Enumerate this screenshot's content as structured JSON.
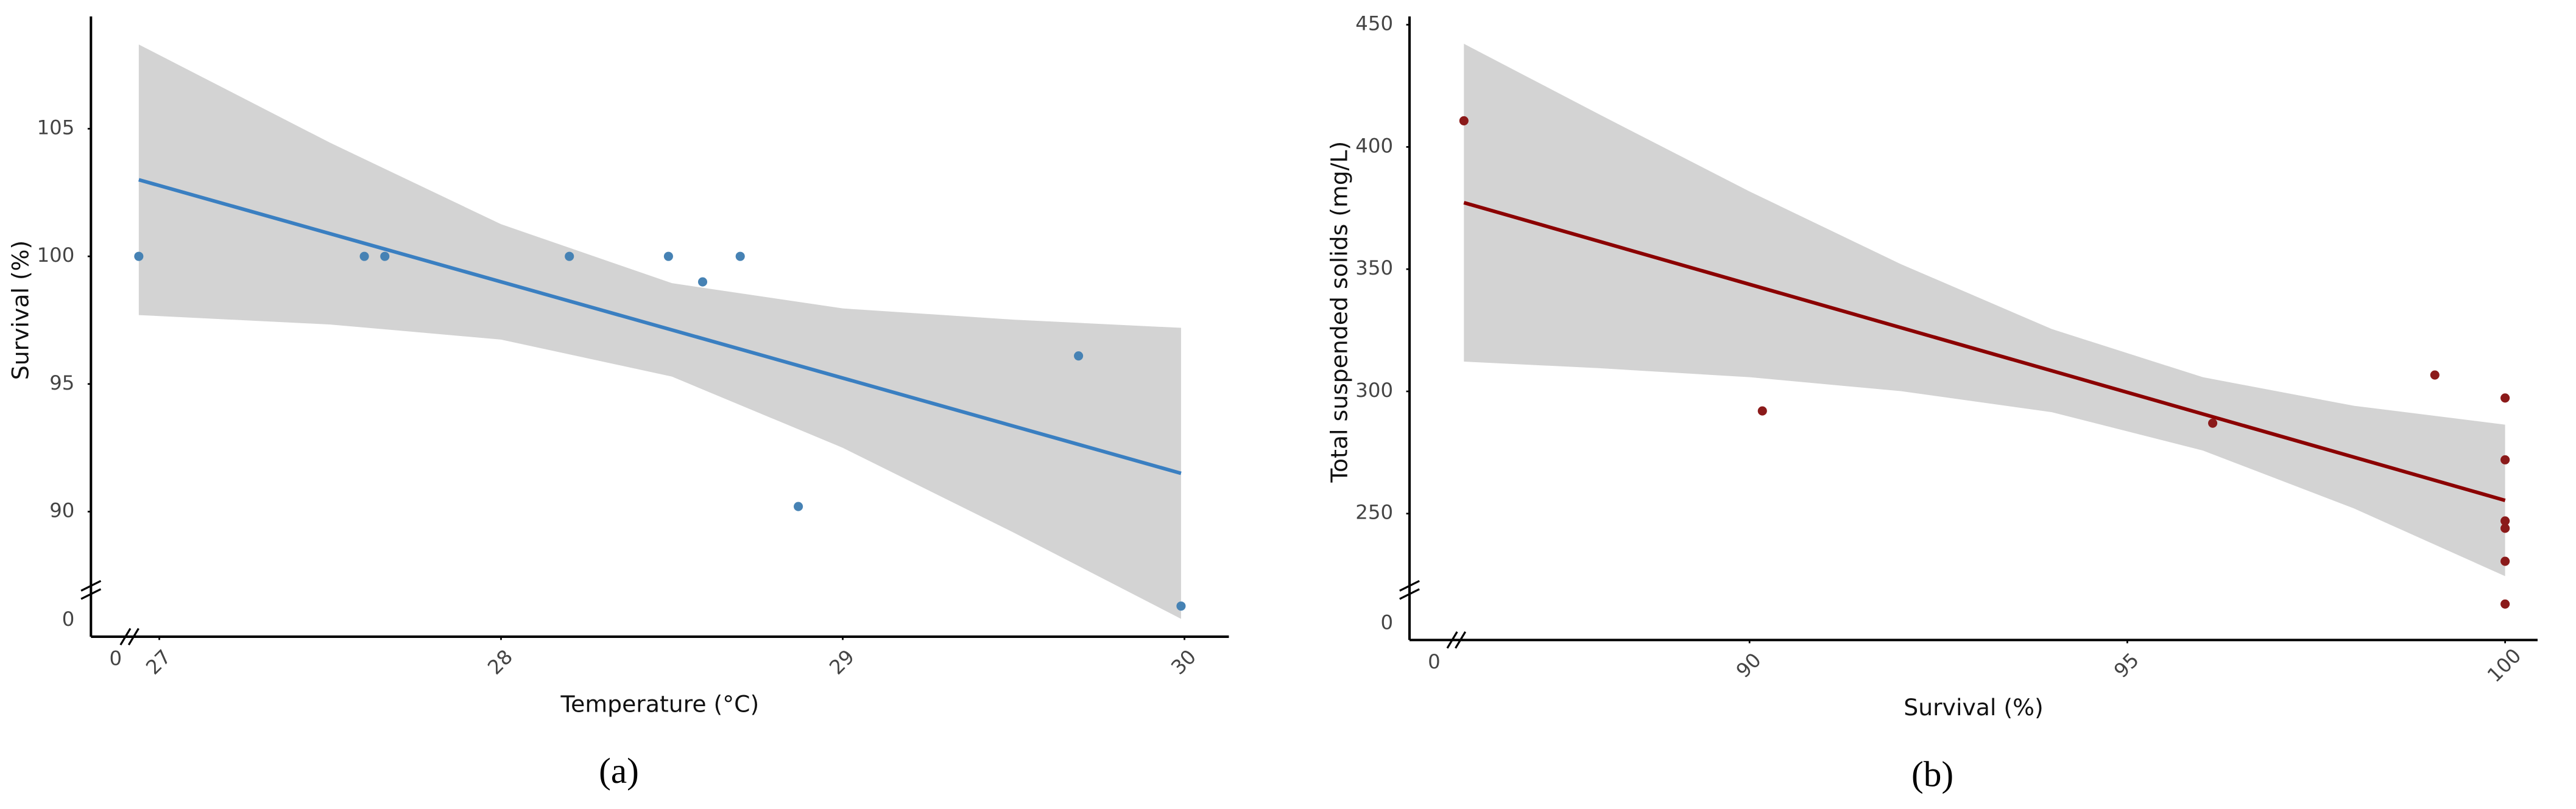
{
  "chart_data": [
    {
      "type": "scatter",
      "caption": "(a)",
      "x_label": "Temperature (°C)",
      "y_label": "Survival (%)",
      "color": "#4682b4",
      "line_color": "#3a7fc1",
      "band_color": "#d3d3d3",
      "x": [
        26.94,
        27.6,
        27.66,
        28.2,
        28.49,
        28.59,
        28.7,
        28.87,
        29.69,
        29.99
      ],
      "y": [
        100,
        100,
        100,
        100,
        100,
        99,
        100,
        90.2,
        96.1,
        86.3
      ],
      "fit": {
        "x": [
          26.94,
          29.99
        ],
        "y": [
          103,
          91.5
        ]
      },
      "band": {
        "x": [
          26.94,
          27.5,
          28,
          28.5,
          29,
          29.5,
          29.99
        ],
        "upper": [
          108.3,
          104.45,
          101.26,
          98.95,
          97.96,
          97.52,
          97.2
        ],
        "lower": [
          97.7,
          97.33,
          96.74,
          95.29,
          92.5,
          89.18,
          85.8
        ]
      },
      "xlim": [
        26.8,
        30.13
      ],
      "ylim": [
        85.1,
        109.4
      ],
      "xticks": [
        27,
        28,
        29,
        30
      ],
      "yticks": [
        90,
        95,
        100,
        105
      ],
      "axis_break": {
        "x": 0,
        "y": 0
      }
    },
    {
      "type": "scatter",
      "caption": "(b)",
      "x_label": "Survival (%)",
      "y_label": "Total suspended solids (mg/L)",
      "color": "#8b1a1a",
      "line_color": "#8b0000",
      "band_color": "#d3d3d3",
      "x": [
        86.22,
        90.17,
        96.13,
        99.07,
        100,
        100,
        100,
        100,
        100,
        100
      ],
      "y": [
        410.7,
        292,
        287,
        306.7,
        297.3,
        272,
        247,
        244,
        230.5,
        213
      ],
      "fit": {
        "x": [
          86.22,
          100
        ],
        "y": [
          377.2,
          255.4
        ]
      },
      "band": {
        "x": [
          86.22,
          88,
          90,
          92,
          94,
          96,
          98,
          100
        ],
        "upper": [
          442.2,
          413.5,
          381.8,
          352.1,
          325.5,
          305.8,
          294.1,
          286.4
        ],
        "lower": [
          312.2,
          309.5,
          305.8,
          300.1,
          291.5,
          275.8,
          252.1,
          224.4
        ]
      },
      "xlim": [
        85.5,
        100.43
      ],
      "ylim": [
        198.3,
        453.4
      ],
      "xticks": [
        90,
        95,
        100
      ],
      "yticks": [
        250,
        300,
        350,
        400,
        450
      ],
      "axis_break": {
        "x": 0,
        "y": 0
      }
    }
  ]
}
